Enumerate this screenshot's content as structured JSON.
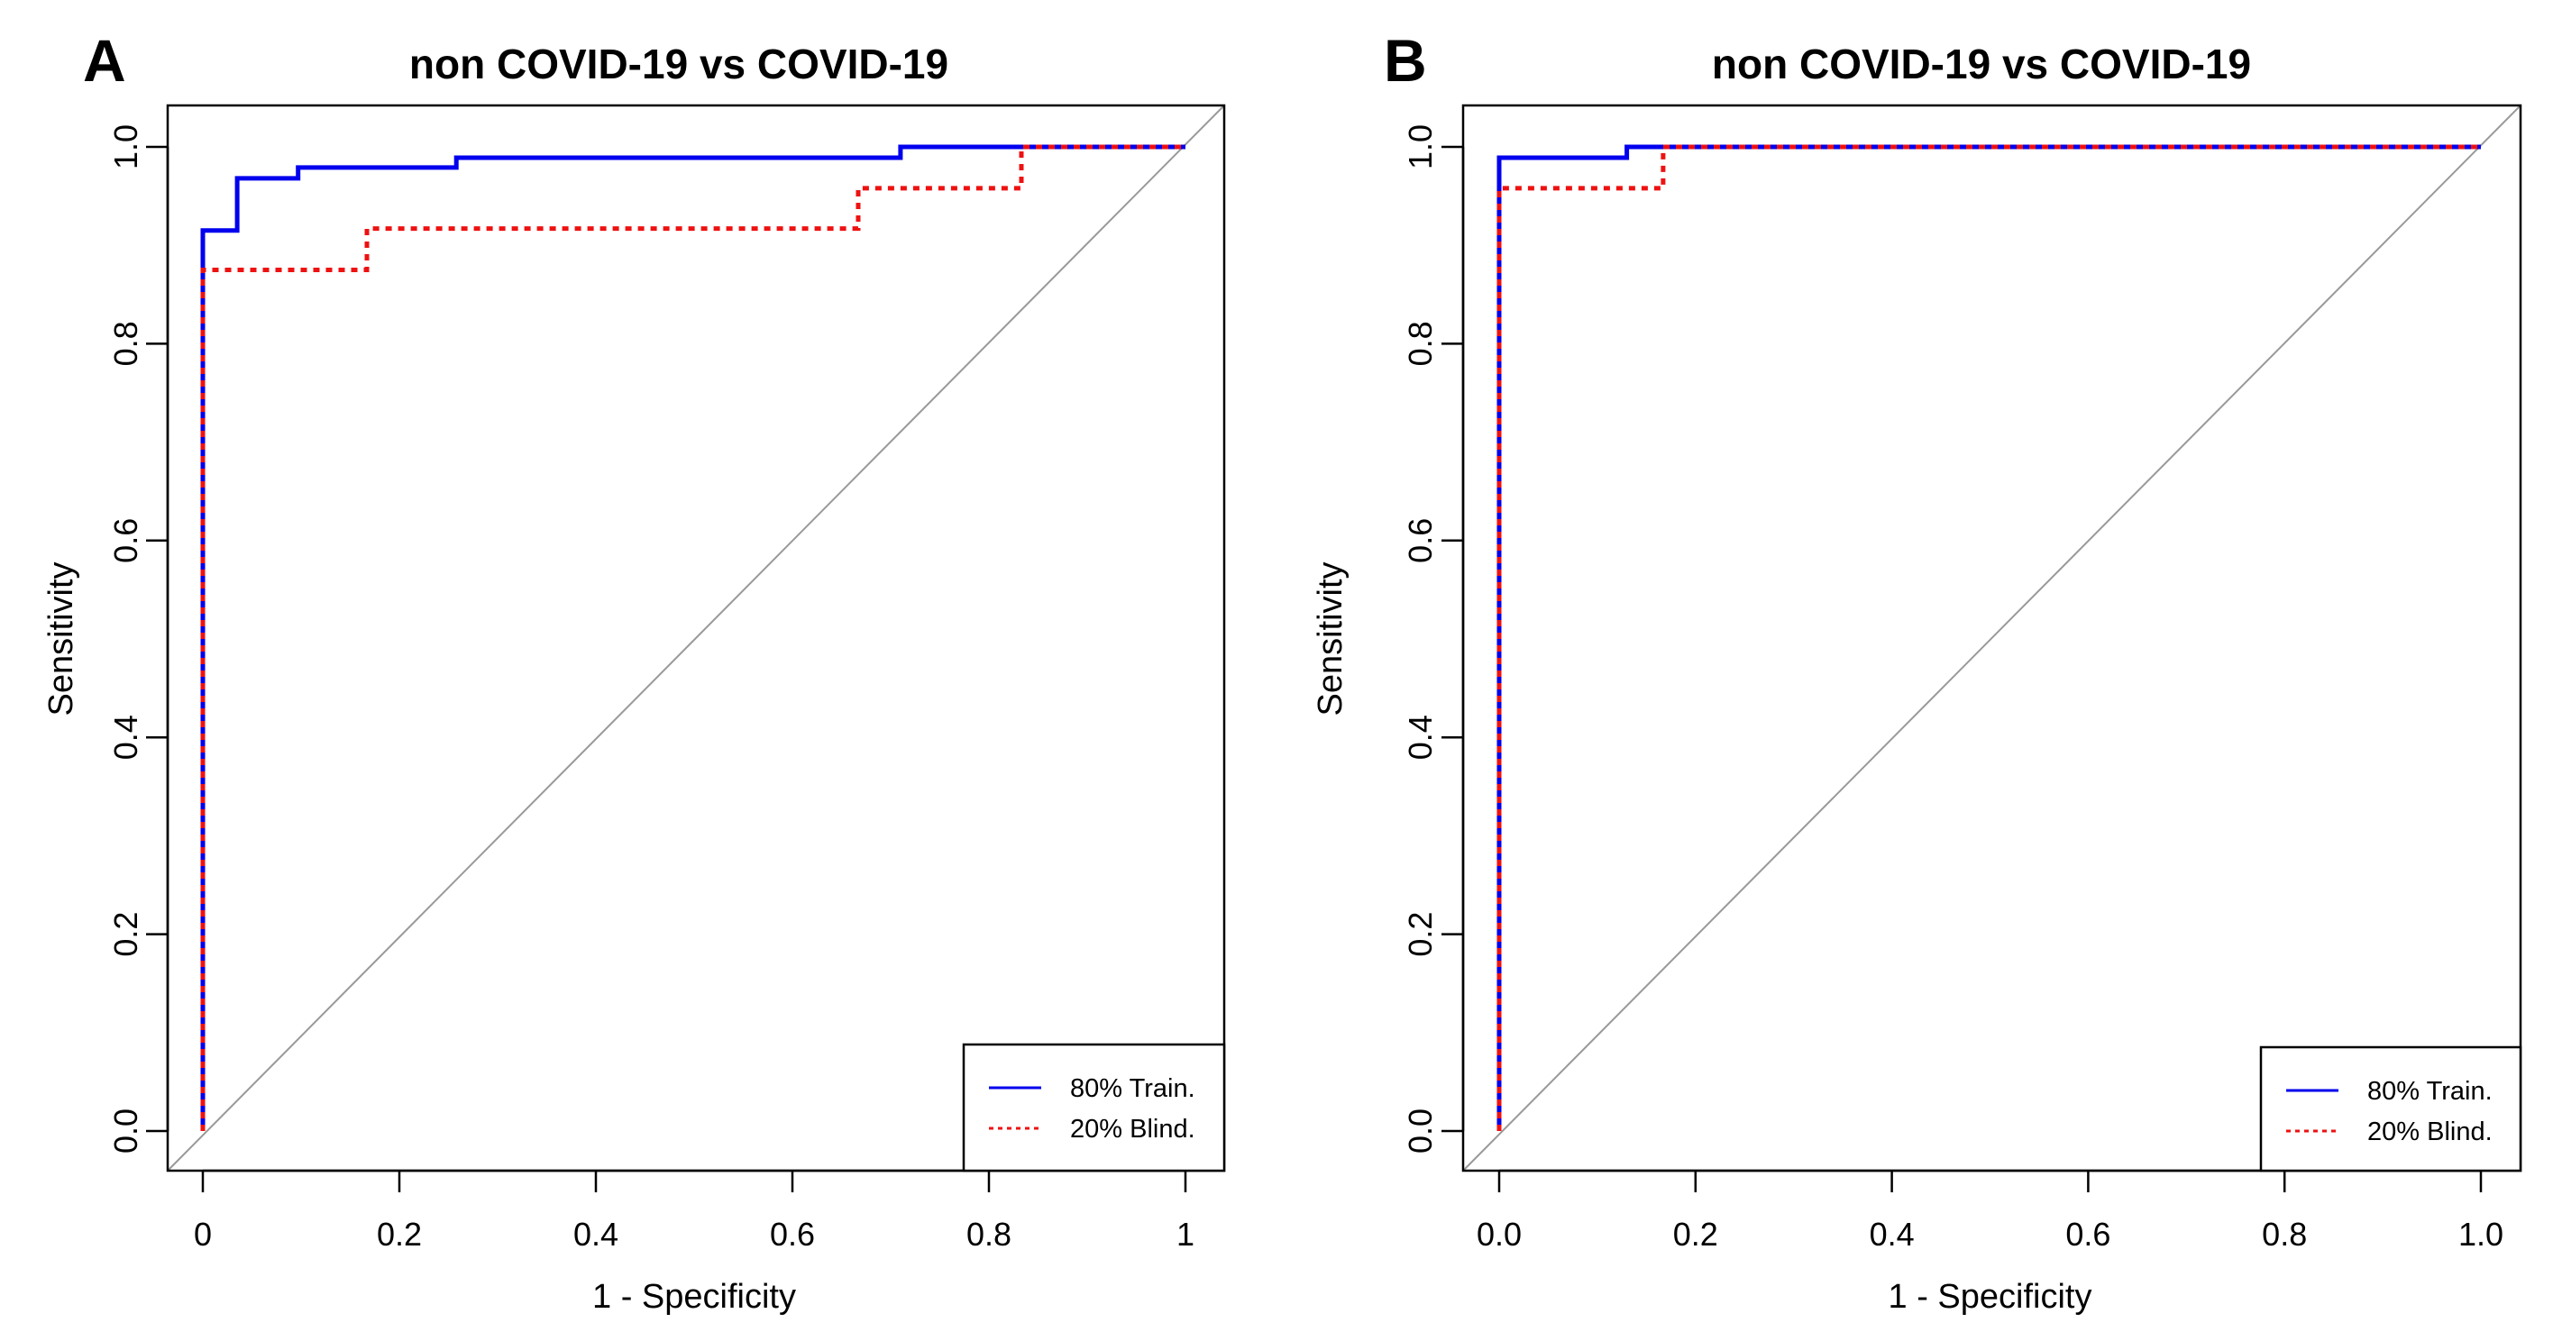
{
  "colors": {
    "train": "#0000ee",
    "blind": "#ee1111",
    "diagonal": "#999999",
    "axis": "#000000"
  },
  "chart_data": [
    {
      "type": "line",
      "panel": "A",
      "title": "non COVID-19 vs COVID-19",
      "xlabel": "1 - Specificity",
      "ylabel": "Sensitivity",
      "xlim": [
        0,
        1
      ],
      "ylim": [
        0,
        1
      ],
      "x_ticks": [
        0,
        0.2,
        0.4,
        0.6,
        0.8,
        1
      ],
      "x_tick_labels": [
        "0",
        "0.2",
        "0.4",
        "0.6",
        "0.8",
        "1"
      ],
      "y_ticks": [
        0,
        0.2,
        0.4,
        0.6,
        0.8,
        1
      ],
      "y_tick_labels": [
        "0.0",
        "0.2",
        "0.4",
        "0.6",
        "0.8",
        "1.0"
      ],
      "diagonal": true,
      "legend_position": "bottom-right",
      "series": [
        {
          "name": "80% Train.",
          "style": "solid",
          "x": [
            0,
            0,
            0.035,
            0.035,
            0.097,
            0.097,
            0.258,
            0.258,
            0.71,
            0.71,
            1
          ],
          "y": [
            0,
            0.915,
            0.915,
            0.968,
            0.968,
            0.979,
            0.979,
            0.989,
            0.989,
            1,
            1
          ]
        },
        {
          "name": "20% Blind.",
          "style": "dotted",
          "x": [
            0,
            0,
            0.167,
            0.167,
            0.667,
            0.667,
            0.833,
            0.833,
            1
          ],
          "y": [
            0,
            0.875,
            0.875,
            0.917,
            0.917,
            0.958,
            0.958,
            1,
            1
          ]
        }
      ]
    },
    {
      "type": "line",
      "panel": "B",
      "title": "non COVID-19 vs COVID-19",
      "xlabel": "1 - Specificity",
      "ylabel": "Sensitivity",
      "xlim": [
        0,
        1
      ],
      "ylim": [
        0,
        1
      ],
      "x_ticks": [
        0,
        0.2,
        0.4,
        0.6,
        0.8,
        1
      ],
      "x_tick_labels": [
        "0.0",
        "0.2",
        "0.4",
        "0.6",
        "0.8",
        "1.0"
      ],
      "y_ticks": [
        0,
        0.2,
        0.4,
        0.6,
        0.8,
        1
      ],
      "y_tick_labels": [
        "0.0",
        "0.2",
        "0.4",
        "0.6",
        "0.8",
        "1.0"
      ],
      "diagonal": true,
      "legend_position": "bottom-right",
      "series": [
        {
          "name": "80% Train.",
          "style": "solid",
          "x": [
            0,
            0,
            0.13,
            0.13,
            1
          ],
          "y": [
            0,
            0.989,
            0.989,
            1,
            1
          ]
        },
        {
          "name": "20% Blind.",
          "style": "dotted",
          "x": [
            0,
            0,
            0.167,
            0.167,
            1
          ],
          "y": [
            0,
            0.958,
            0.958,
            1,
            1
          ]
        }
      ]
    }
  ]
}
